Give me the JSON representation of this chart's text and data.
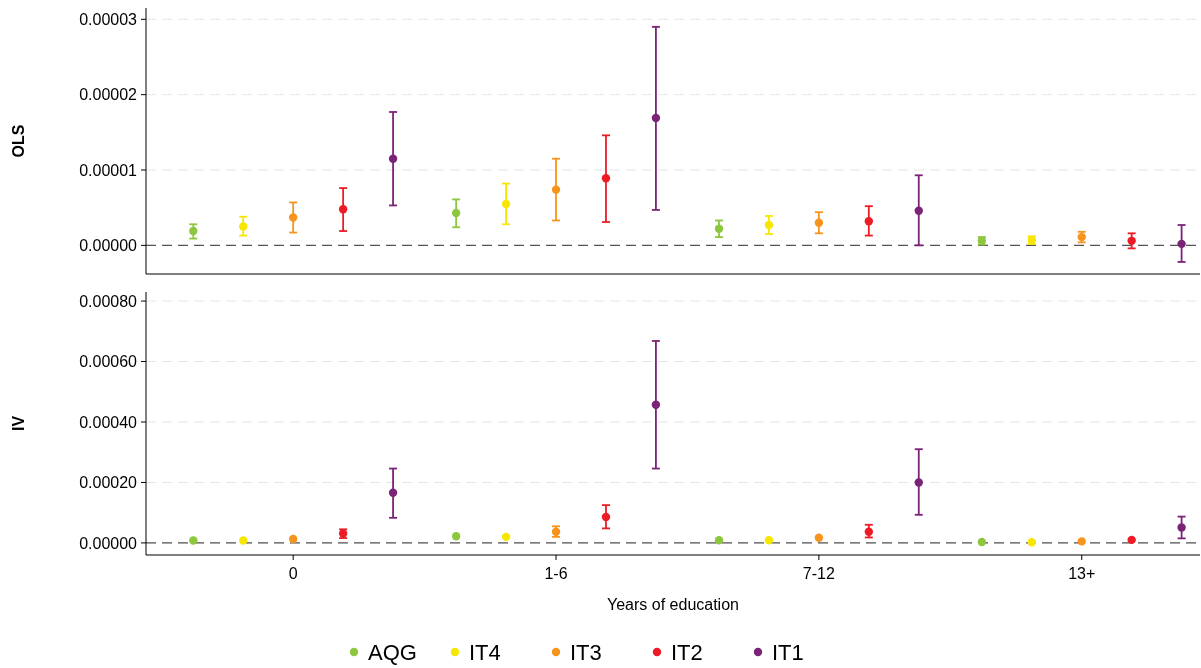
{
  "chart_data": [
    {
      "type": "scatter",
      "ylabel": "OLS",
      "categories": [
        null,
        null,
        null,
        null
      ],
      "ylim": [
        -3.8e-06,
        3.15e-05
      ],
      "yticks": [
        {
          "value": 0,
          "label": "0.00000"
        },
        {
          "value": 1e-05,
          "label": "0.00001"
        },
        {
          "value": 2e-05,
          "label": "0.00002"
        },
        {
          "value": 3e-05,
          "label": "0.00003"
        }
      ],
      "grid": "y",
      "marker": "circle",
      "legend": false,
      "ref_lines": [
        {
          "axis": "y",
          "value": 0,
          "color": "#555555",
          "line_style": "dashed"
        }
      ],
      "series": [
        {
          "color": "#8dc63f",
          "values": [
            1.9e-06,
            4.3e-06,
            2.2e-06,
            6e-07
          ],
          "errors": [
            [
              9e-07,
              2.8e-06
            ],
            [
              2.4e-06,
              6.1e-06
            ],
            [
              1.1e-06,
              3.3e-06
            ],
            [
              1e-07,
              1.1e-06
            ]
          ]
        },
        {
          "color": "#f7e600",
          "values": [
            2.5e-06,
            5.5e-06,
            2.7e-06,
            7e-07
          ],
          "errors": [
            [
              1.3e-06,
              3.8e-06
            ],
            [
              2.8e-06,
              8.2e-06
            ],
            [
              1.5e-06,
              3.9e-06
            ],
            [
              2e-07,
              1.2e-06
            ]
          ]
        },
        {
          "color": "#f7941d",
          "values": [
            3.7e-06,
            7.4e-06,
            3e-06,
            1.1e-06
          ],
          "errors": [
            [
              1.7e-06,
              5.7e-06
            ],
            [
              3.3e-06,
              1.15e-05
            ],
            [
              1.6e-06,
              4.4e-06
            ],
            [
              4e-07,
              1.8e-06
            ]
          ]
        },
        {
          "color": "#ed1c24",
          "values": [
            4.8e-06,
            8.9e-06,
            3.2e-06,
            6e-07
          ],
          "errors": [
            [
              1.9e-06,
              7.6e-06
            ],
            [
              3.1e-06,
              1.46e-05
            ],
            [
              1.3e-06,
              5.2e-06
            ],
            [
              -4e-07,
              1.6e-06
            ]
          ]
        },
        {
          "color": "#7b2377",
          "values": [
            1.15e-05,
            1.69e-05,
            4.6e-06,
            2e-07
          ],
          "errors": [
            [
              5.3e-06,
              1.77e-05
            ],
            [
              4.7e-06,
              2.9e-05
            ],
            [
              0,
              9.3e-06
            ],
            [
              -2.2e-06,
              2.7e-06
            ]
          ]
        }
      ]
    },
    {
      "type": "scatter",
      "ylabel": "IV",
      "xlabel": "Years of education",
      "categories": [
        "0",
        "1-6",
        "7-12",
        "13+"
      ],
      "ylim": [
        -4e-05,
        0.00083
      ],
      "yticks": [
        {
          "value": 0,
          "label": "0.00000"
        },
        {
          "value": 0.0002,
          "label": "0.00020"
        },
        {
          "value": 0.0004,
          "label": "0.00040"
        },
        {
          "value": 0.0006,
          "label": "0.00060"
        },
        {
          "value": 0.0008,
          "label": "0.00080"
        }
      ],
      "grid": "y",
      "marker": "circle",
      "legend": "bottom",
      "ref_lines": [
        {
          "axis": "y",
          "value": 0,
          "color": "#555555",
          "line_style": "dashed"
        }
      ],
      "series": [
        {
          "name": "AQG",
          "color": "#8dc63f",
          "values": [
            8e-06,
            2.2e-05,
            9e-06,
            3e-06
          ],
          "errors": [
            null,
            null,
            null,
            null
          ]
        },
        {
          "name": "IT4",
          "color": "#f7e600",
          "values": [
            8e-06,
            2e-05,
            9e-06,
            2e-06
          ],
          "errors": [
            null,
            null,
            null,
            null
          ]
        },
        {
          "name": "IT3",
          "color": "#f7941d",
          "values": [
            1.3e-05,
            3.7e-05,
            1.7e-05,
            5e-06
          ],
          "errors": [
            null,
            [
              2e-05,
              5.5e-05
            ],
            null,
            null
          ]
        },
        {
          "name": "IT2",
          "color": "#ed1c24",
          "values": [
            3.1e-05,
            8.6e-05,
            3.7e-05,
            1e-05
          ],
          "errors": [
            [
              1.6e-05,
              4.5e-05
            ],
            [
              4.8e-05,
              0.000125
            ],
            [
              1.8e-05,
              6e-05
            ],
            null
          ]
        },
        {
          "name": "IT1",
          "color": "#7b2377",
          "values": [
            0.000166,
            0.000457,
            0.0002,
            5.1e-05
          ],
          "errors": [
            [
              8.3e-05,
              0.000246
            ],
            [
              0.000246,
              0.000668
            ],
            [
              9.3e-05,
              0.00031
            ],
            [
              1.5e-05,
              8.7e-05
            ]
          ]
        }
      ]
    }
  ]
}
